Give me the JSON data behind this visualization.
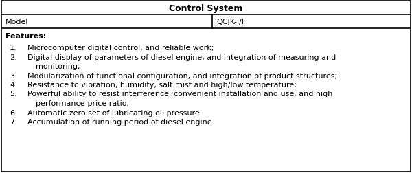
{
  "title": "Control System",
  "model_label": "Model",
  "model_value": "QCJK-I/F",
  "features_label": "Features:",
  "features": [
    [
      "Microcomputer digital control, and reliable work;"
    ],
    [
      "Digital display of parameters of diesel engine, and integration of measuring and",
      "monitoring;"
    ],
    [
      "Modularization of functional configuration, and integration of product structures;"
    ],
    [
      "Resistance to vibration, humidity, salt mist and high/low temperature;"
    ],
    [
      "Powerful ability to resist interference, convenient installation and use, and high",
      "performance-price ratio;"
    ],
    [
      "Automatic zero set of lubricating oil pressure"
    ],
    [
      "Accumulation of running period of diesel engine."
    ]
  ],
  "bg_color": "#ffffff",
  "border_color": "#000000",
  "font_size": 8.0,
  "title_font_size": 9.0,
  "model_col_split": 0.515,
  "fig_width": 6.0,
  "fig_height": 2.53,
  "dpi": 100
}
